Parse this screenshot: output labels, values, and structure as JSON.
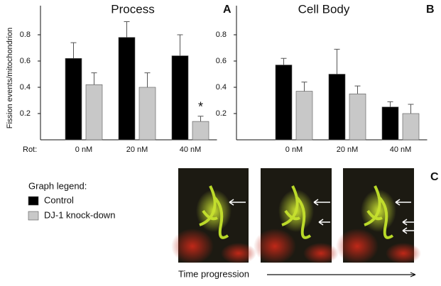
{
  "chart_data": [
    {
      "type": "bar",
      "title": "Process",
      "panel": "A",
      "y_label": "Fission events/mitochondrion",
      "x_label": "Rot:",
      "categories": [
        "0 nM",
        "20 nM",
        "40 nM"
      ],
      "series": [
        {
          "name": "Control",
          "color": "#000000",
          "values": [
            0.62,
            0.78,
            0.64
          ],
          "errors": [
            0.12,
            0.12,
            0.16
          ]
        },
        {
          "name": "DJ-1 knock-down",
          "color": "#c8c8c8",
          "values": [
            0.42,
            0.4,
            0.14
          ],
          "errors": [
            0.09,
            0.11,
            0.04
          ]
        }
      ],
      "annotations": [
        "*"
      ],
      "ylim": [
        0,
        1
      ],
      "yticks": [
        0.2,
        0.4,
        0.6,
        0.8
      ]
    },
    {
      "type": "bar",
      "title": "Cell Body",
      "panel": "B",
      "categories": [
        "0 nM",
        "20 nM",
        "40 nM"
      ],
      "series": [
        {
          "name": "Control",
          "color": "#000000",
          "values": [
            0.57,
            0.5,
            0.25
          ],
          "errors": [
            0.05,
            0.19,
            0.04
          ]
        },
        {
          "name": "DJ-1 knock-down",
          "color": "#c8c8c8",
          "values": [
            0.37,
            0.35,
            0.2
          ],
          "errors": [
            0.07,
            0.06,
            0.07
          ]
        }
      ],
      "ylim": [
        0,
        1
      ],
      "yticks": [
        0.2,
        0.4,
        0.6,
        0.8
      ]
    }
  ],
  "legend_title": "Graph legend:",
  "image_panel": {
    "label": "C",
    "caption": "Time progression"
  }
}
